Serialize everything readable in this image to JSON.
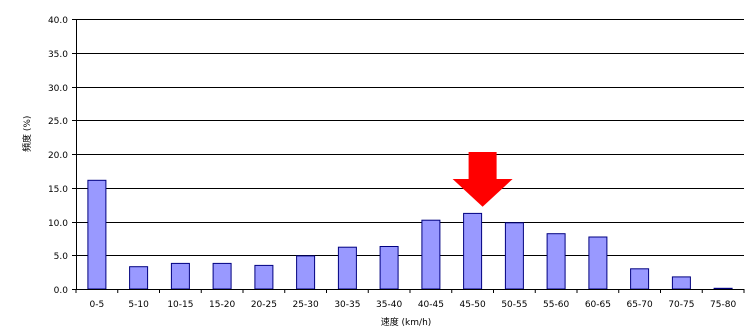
{
  "chart_data": {
    "type": "bar",
    "title": "",
    "xlabel": "速度 (km/h)",
    "ylabel": "頻度 (%)",
    "categories": [
      "0-5",
      "5-10",
      "10-15",
      "15-20",
      "20-25",
      "25-30",
      "30-35",
      "35-40",
      "40-45",
      "45-50",
      "50-55",
      "55-60",
      "60-65",
      "65-70",
      "70-75",
      "75-80"
    ],
    "values": [
      16.1,
      3.3,
      3.8,
      3.8,
      3.5,
      4.9,
      6.2,
      6.3,
      10.2,
      11.2,
      9.8,
      8.2,
      7.7,
      3.0,
      1.8,
      0.1
    ],
    "ylim": [
      0,
      40
    ],
    "yticks": [
      "0.0",
      "5.0",
      "10.0",
      "15.0",
      "20.0",
      "25.0",
      "30.0",
      "35.0",
      "40.0"
    ],
    "grid": true,
    "legend": "none",
    "bar_color": "#9999ff",
    "bar_edge_color": "#000080",
    "annotation": {
      "type": "arrow",
      "color": "#ff0000",
      "points_to": "45-50"
    }
  }
}
